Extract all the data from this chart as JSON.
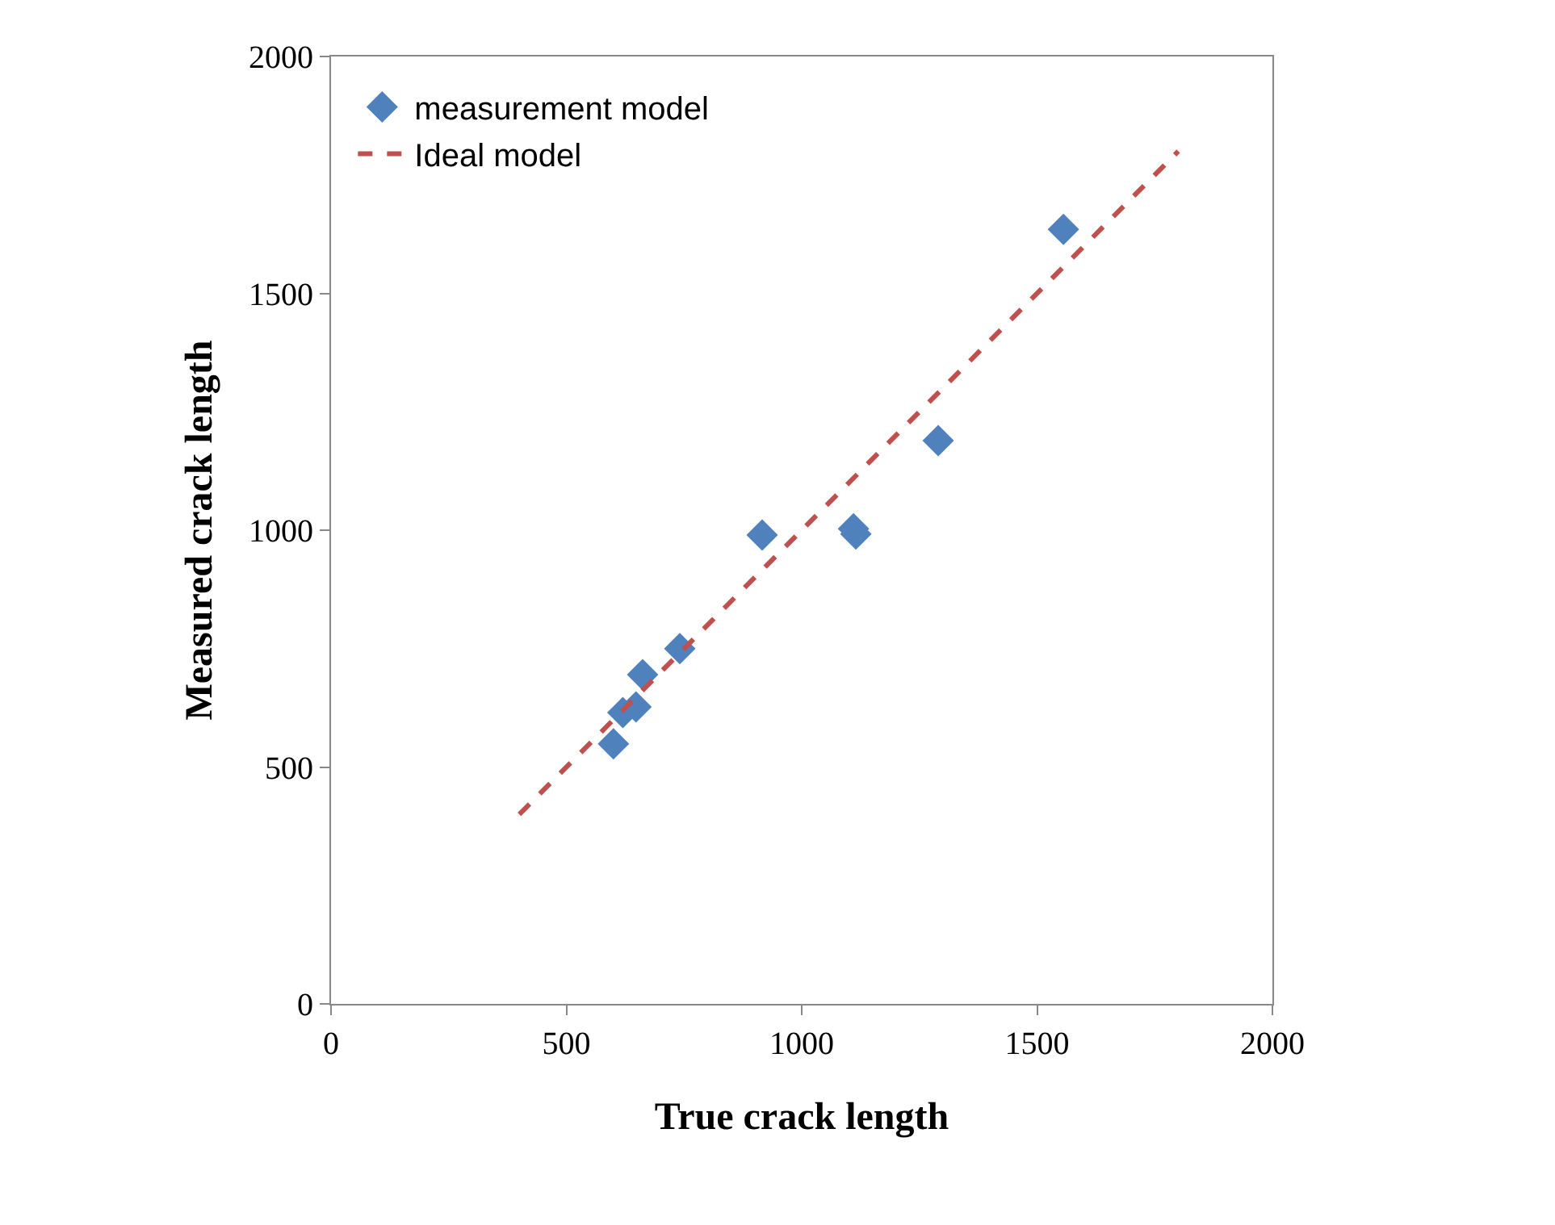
{
  "chart_data": {
    "type": "scatter",
    "xlabel": "True crack length",
    "ylabel": "Measured crack length",
    "xlim": [
      0,
      2000
    ],
    "ylim": [
      0,
      2000
    ],
    "xticks": [
      0,
      500,
      1000,
      1500,
      2000
    ],
    "yticks": [
      0,
      500,
      1000,
      1500,
      2000
    ],
    "legend": "top left",
    "marker": "diamond",
    "series": [
      {
        "name": "measurement model",
        "color": "#4f81bd",
        "x": [
          600,
          620,
          648,
          662,
          741,
          916,
          1110,
          1115,
          1290,
          1556
        ],
        "values": [
          549,
          615,
          627,
          695,
          750,
          990,
          1003,
          992,
          1189,
          1635
        ]
      },
      {
        "name": "Ideal model",
        "type": "line",
        "color": "#c0504d",
        "line_style": "dashed",
        "marker": "none",
        "x": [
          400,
          1800
        ],
        "values": [
          400,
          1800
        ]
      }
    ]
  }
}
